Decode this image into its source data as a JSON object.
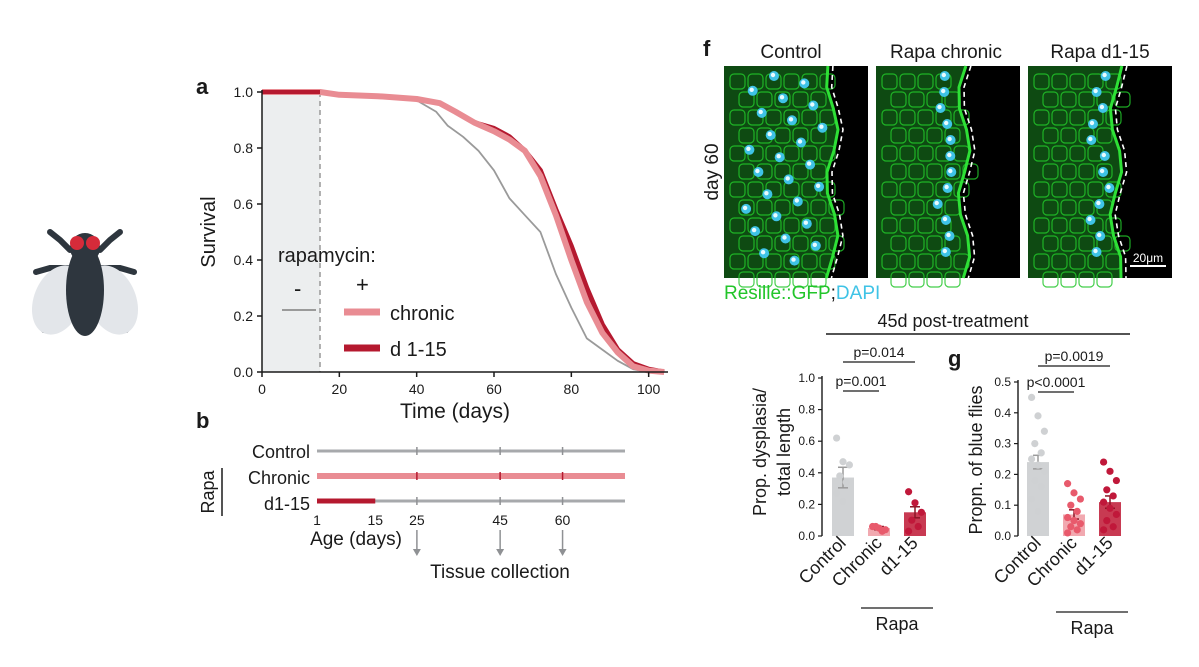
{
  "colors": {
    "control": "#9a9a9a",
    "chronic": "#e98c93",
    "d1_15": "#b5192f",
    "gfp": "#22c52a",
    "dapi": "#3fc3e6",
    "fly_head": "#d62b3a",
    "fly_body": "#2e363e"
  },
  "icons": {
    "fly": "fruit-fly-icon"
  },
  "panels": {
    "a": "a",
    "b": "b",
    "f": "f",
    "g": "g"
  },
  "chart_data": [
    {
      "id": "a",
      "type": "line",
      "xlabel": "Time (days)",
      "ylabel": "Survival",
      "xlim": [
        0,
        105
      ],
      "ylim": [
        0,
        1.0
      ],
      "xticks": [
        "0",
        "20",
        "40",
        "60",
        "80",
        "100"
      ],
      "yticks": [
        "0.0",
        "0.2",
        "0.4",
        "0.6",
        "0.8",
        "1.0"
      ],
      "treatment_window_days": [
        0,
        15
      ],
      "legend": {
        "header": "rapamycin:",
        "minus": "-",
        "plus": "+",
        "entries": [
          "chronic",
          "d 1-15"
        ]
      },
      "series": [
        {
          "key": "control",
          "x": [
            0,
            15,
            20,
            30,
            40,
            45,
            48,
            52,
            56,
            60,
            64,
            68,
            72,
            76,
            80,
            84,
            88,
            92,
            96,
            100,
            104
          ],
          "y": [
            1.0,
            1.0,
            0.99,
            0.985,
            0.97,
            0.93,
            0.88,
            0.84,
            0.79,
            0.72,
            0.62,
            0.56,
            0.5,
            0.35,
            0.23,
            0.12,
            0.08,
            0.04,
            0.01,
            0.0,
            0.0
          ]
        },
        {
          "name": "chronic",
          "key": "chronic",
          "x": [
            0,
            15,
            20,
            30,
            40,
            46,
            50,
            55,
            60,
            64,
            68,
            72,
            76,
            80,
            84,
            88,
            92,
            96,
            100,
            104
          ],
          "y": [
            1.0,
            1.0,
            0.99,
            0.985,
            0.975,
            0.96,
            0.93,
            0.89,
            0.86,
            0.83,
            0.79,
            0.7,
            0.56,
            0.4,
            0.25,
            0.14,
            0.07,
            0.02,
            0.005,
            0.0
          ]
        },
        {
          "name": "d 1-15",
          "key": "d1_15",
          "x": [
            0,
            15,
            20,
            30,
            40,
            46,
            50,
            55,
            60,
            64,
            68,
            72,
            76,
            80,
            84,
            88,
            92,
            96,
            100,
            104
          ],
          "y": [
            1.0,
            1.0,
            0.99,
            0.985,
            0.975,
            0.96,
            0.93,
            0.89,
            0.87,
            0.84,
            0.79,
            0.72,
            0.58,
            0.45,
            0.3,
            0.17,
            0.08,
            0.03,
            0.01,
            0.0
          ]
        }
      ]
    },
    {
      "id": "b",
      "type": "table",
      "group_label": "Rapa",
      "rows": [
        {
          "label": "Control",
          "treated_until": 0
        },
        {
          "label": "Chronic",
          "treated_until": 75
        },
        {
          "label": "d1-15",
          "treated_until": 15
        }
      ],
      "axis_max": 75,
      "ticks": [
        "1",
        "15",
        "25",
        "45",
        "60"
      ],
      "tick_values": [
        1,
        15,
        25,
        45,
        60
      ],
      "collection_days": [
        25,
        45,
        60
      ],
      "xlabel": "Age (days)",
      "arrow_label": "Tissue collection"
    },
    {
      "id": "f",
      "type": "bar",
      "header": "45d post-treatment",
      "ylabel": [
        "Prop. dysplasia/",
        "total length"
      ],
      "categories": [
        "Control",
        "Chronic",
        "d1-15"
      ],
      "group_label": "Rapa",
      "ylim": [
        0,
        1.0
      ],
      "yticks": [
        "0.0",
        "0.2",
        "0.4",
        "0.6",
        "0.8",
        "1.0"
      ],
      "values": [
        0.37,
        0.05,
        0.15
      ],
      "sem": [
        0.065,
        0.01,
        0.035
      ],
      "points": [
        [
          0.62,
          0.47,
          0.45,
          0.38,
          0.34,
          0.27,
          0.22
        ],
        [
          0.06,
          0.05,
          0.04,
          0.06,
          0.03
        ],
        [
          0.28,
          0.21,
          0.15,
          0.1,
          0.06,
          0.03
        ]
      ],
      "comparisons": [
        {
          "label": "p=0.001",
          "from": 0,
          "to": 1
        },
        {
          "label": "p=0.014",
          "from": 0,
          "to": 2
        }
      ]
    },
    {
      "id": "g",
      "type": "bar",
      "ylabel": [
        "Propn. of blue flies"
      ],
      "categories": [
        "Control",
        "Chronic",
        "d1-15"
      ],
      "group_label": "Rapa",
      "ylim": [
        0,
        0.5
      ],
      "yticks": [
        "0.0",
        "0.1",
        "0.2",
        "0.3",
        "0.4",
        "0.5"
      ],
      "values": [
        0.24,
        0.07,
        0.11
      ],
      "sem": [
        0.022,
        0.015,
        0.02
      ],
      "points": [
        [
          0.45,
          0.39,
          0.34,
          0.3,
          0.27,
          0.25,
          0.23,
          0.21,
          0.18,
          0.16,
          0.12,
          0.08
        ],
        [
          0.17,
          0.14,
          0.12,
          0.1,
          0.08,
          0.06,
          0.05,
          0.04,
          0.03,
          0.02,
          0.01
        ],
        [
          0.24,
          0.21,
          0.18,
          0.15,
          0.13,
          0.11,
          0.09,
          0.07,
          0.05,
          0.03,
          0.02
        ]
      ],
      "comparisons": [
        {
          "label": "p<0.0001",
          "from": 0,
          "to": 1
        },
        {
          "label": "p=0.0019",
          "from": 0,
          "to": 2
        }
      ]
    }
  ],
  "micrographs": {
    "titles": [
      "Control",
      "Rapa chronic",
      "Rapa d1-15"
    ],
    "side_label": "day 60",
    "scale_bar": "20μm",
    "stain_gfp": "Resille::GFP",
    "stain_sep": ";",
    "stain_dapi": "DAPI"
  }
}
